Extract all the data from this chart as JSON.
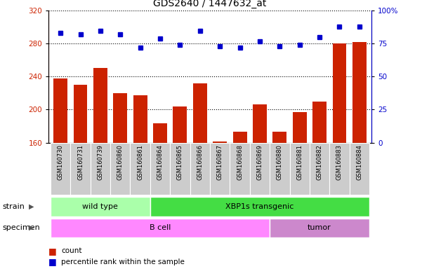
{
  "title": "GDS2640 / 1447632_at",
  "samples": [
    "GSM160730",
    "GSM160731",
    "GSM160739",
    "GSM160860",
    "GSM160861",
    "GSM160864",
    "GSM160865",
    "GSM160866",
    "GSM160867",
    "GSM160868",
    "GSM160869",
    "GSM160880",
    "GSM160881",
    "GSM160882",
    "GSM160883",
    "GSM160884"
  ],
  "count_values": [
    238,
    230,
    251,
    220,
    217,
    183,
    204,
    232,
    161,
    173,
    206,
    173,
    197,
    210,
    280,
    282
  ],
  "percentile_values": [
    83,
    82,
    85,
    82,
    72,
    79,
    74,
    85,
    73,
    72,
    77,
    73,
    74,
    80,
    88,
    88
  ],
  "ylim_left": [
    160,
    320
  ],
  "ylim_right": [
    0,
    100
  ],
  "yticks_left": [
    160,
    200,
    240,
    280,
    320
  ],
  "yticks_right": [
    0,
    25,
    50,
    75,
    100
  ],
  "bar_color": "#cc2200",
  "dot_color": "#0000cc",
  "grid_color": "#000000",
  "tick_label_bg": "#cccccc",
  "strain_groups": [
    {
      "label": "wild type",
      "start": 0,
      "end": 5,
      "color": "#aaffaa"
    },
    {
      "label": "XBP1s transgenic",
      "start": 5,
      "end": 16,
      "color": "#44dd44"
    }
  ],
  "specimen_groups": [
    {
      "label": "B cell",
      "start": 0,
      "end": 11,
      "color": "#ff88ff"
    },
    {
      "label": "tumor",
      "start": 11,
      "end": 16,
      "color": "#cc88cc"
    }
  ],
  "left_axis_color": "#cc2200",
  "right_axis_color": "#0000cc",
  "row_label_color": "#555555"
}
